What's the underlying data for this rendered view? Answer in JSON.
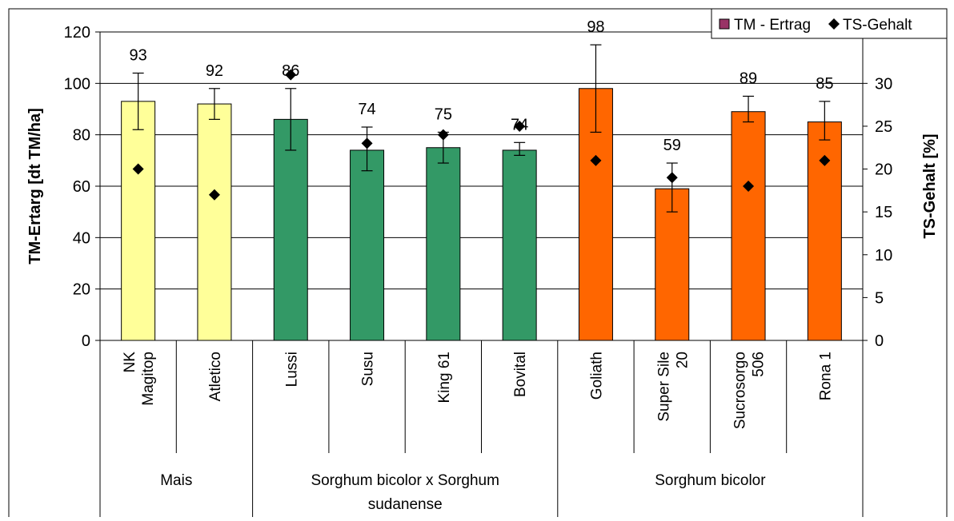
{
  "chart_data": {
    "type": "bar",
    "title": "",
    "categories": [
      "NK Magitop",
      "Atletico",
      "Lussi",
      "Susu",
      "King 61",
      "Bovital",
      "Goliath",
      "Super Sile 20",
      "Sucrosorgo 506",
      "Rona 1"
    ],
    "category_lines": [
      [
        "NK",
        "Magitop"
      ],
      [
        "Atletico"
      ],
      [
        "Lussi"
      ],
      [
        "Susu"
      ],
      [
        "King 61"
      ],
      [
        "Bovital"
      ],
      [
        "Goliath"
      ],
      [
        "Super Sile",
        "20"
      ],
      [
        "Sucrosorgo",
        "506"
      ],
      [
        "Rona 1"
      ]
    ],
    "groups": [
      {
        "lines": [
          "Mais"
        ],
        "start": 0,
        "end": 1
      },
      {
        "lines": [
          "Sorghum bicolor x  Sorghum",
          "sudanense"
        ],
        "start": 2,
        "end": 5
      },
      {
        "lines": [
          "Sorghum bicolor"
        ],
        "start": 6,
        "end": 9
      }
    ],
    "series": [
      {
        "name": "TM - Ertrag",
        "axis": "left",
        "kind": "bar",
        "values": [
          93,
          92,
          86,
          74,
          75,
          74,
          98,
          59,
          89,
          85
        ],
        "labels": [
          "93",
          "92",
          "86",
          "74",
          "75",
          "74",
          "98",
          "59",
          "89",
          "85"
        ],
        "error_low": [
          82,
          86,
          74,
          66,
          69,
          72,
          81,
          50,
          85,
          78
        ],
        "error_high": [
          104,
          98,
          98,
          83,
          81,
          77,
          115,
          69,
          95,
          93
        ],
        "colors": [
          "#ffff99",
          "#ffff99",
          "#339966",
          "#339966",
          "#339966",
          "#339966",
          "#ff6600",
          "#ff6600",
          "#ff6600",
          "#ff6600"
        ]
      },
      {
        "name": "TS-Gehalt",
        "axis": "right",
        "kind": "marker",
        "values": [
          20,
          17,
          31,
          23,
          24,
          25,
          21,
          19,
          18,
          21
        ]
      }
    ],
    "ylabel": "TM-Ertarg [dt TM/ha]",
    "ylabel_right": "TS-Gehalt [%]",
    "ylim": [
      0,
      120
    ],
    "yticks": [
      0,
      20,
      40,
      60,
      80,
      100,
      120
    ],
    "ylim_right": [
      0,
      36
    ],
    "yticks_right": [
      0,
      5,
      10,
      15,
      20,
      25,
      30
    ],
    "grid": true,
    "legend_position": "top-right",
    "legend_swatch_color": "#993366"
  }
}
